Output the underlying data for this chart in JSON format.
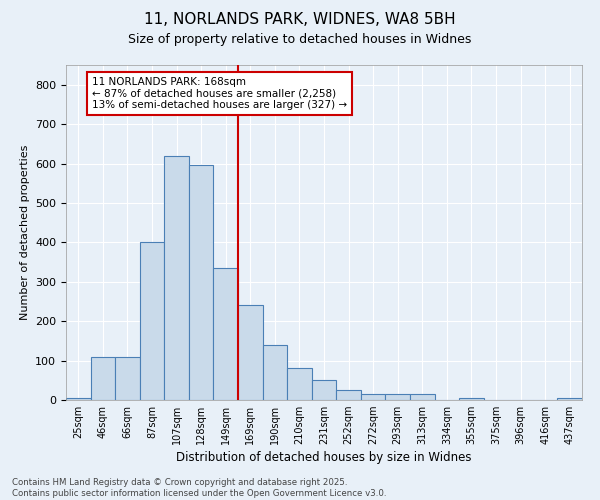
{
  "title1": "11, NORLANDS PARK, WIDNES, WA8 5BH",
  "title2": "Size of property relative to detached houses in Widnes",
  "xlabel": "Distribution of detached houses by size in Widnes",
  "ylabel": "Number of detached properties",
  "bar_labels": [
    "25sqm",
    "46sqm",
    "66sqm",
    "87sqm",
    "107sqm",
    "128sqm",
    "149sqm",
    "169sqm",
    "190sqm",
    "210sqm",
    "231sqm",
    "252sqm",
    "272sqm",
    "293sqm",
    "313sqm",
    "334sqm",
    "355sqm",
    "375sqm",
    "396sqm",
    "416sqm",
    "437sqm"
  ],
  "bar_heights": [
    5,
    110,
    110,
    400,
    620,
    595,
    335,
    240,
    140,
    80,
    50,
    25,
    15,
    15,
    15,
    0,
    5,
    0,
    0,
    0,
    5
  ],
  "bar_color": "#c9daea",
  "bar_edge_color": "#4a7fb5",
  "background_color": "#e8f0f8",
  "grid_color": "#ffffff",
  "annotation_line1": "11 NORLANDS PARK: 168sqm",
  "annotation_line2": "← 87% of detached houses are smaller (2,258)",
  "annotation_line3": "13% of semi-detached houses are larger (327) →",
  "ylim_max": 850,
  "yticks": [
    0,
    100,
    200,
    300,
    400,
    500,
    600,
    700,
    800
  ],
  "footer1": "Contains HM Land Registry data © Crown copyright and database right 2025.",
  "footer2": "Contains public sector information licensed under the Open Government Licence v3.0."
}
